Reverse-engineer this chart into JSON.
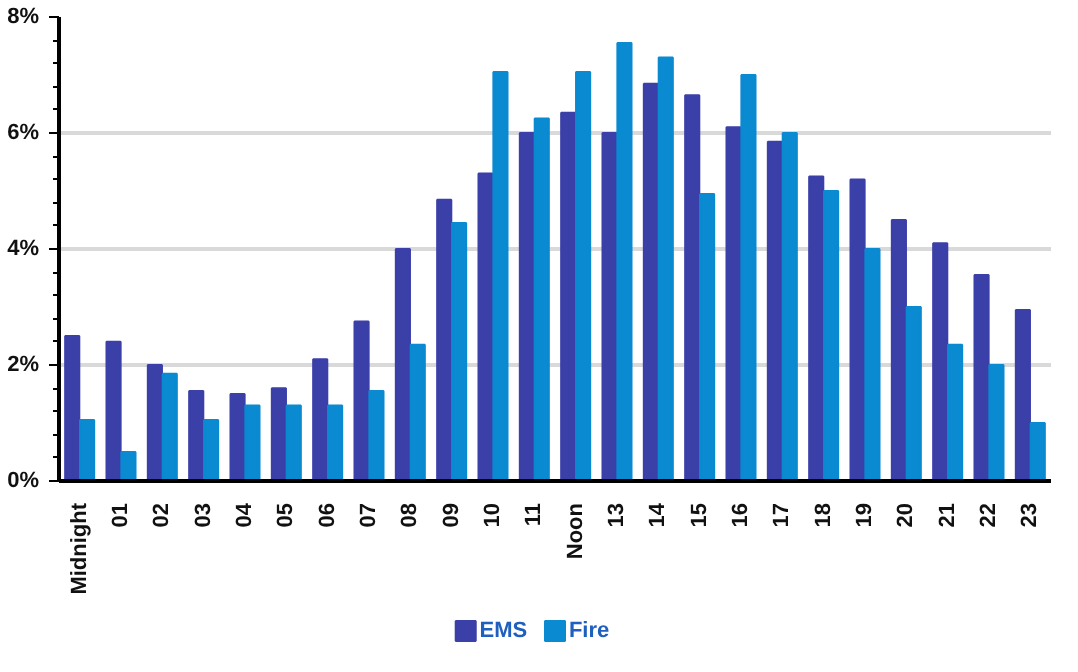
{
  "chart_data": {
    "type": "bar",
    "categories": [
      "Midnight",
      "01",
      "02",
      "03",
      "04",
      "05",
      "06",
      "07",
      "08",
      "09",
      "10",
      "11",
      "Noon",
      "13",
      "14",
      "15",
      "16",
      "17",
      "18",
      "19",
      "20",
      "21",
      "22",
      "23"
    ],
    "series": [
      {
        "name": "EMS",
        "color": "#3b3fa8",
        "values": [
          2.5,
          2.4,
          2.0,
          1.55,
          1.5,
          1.6,
          2.1,
          2.75,
          4.0,
          4.85,
          5.3,
          6.0,
          6.35,
          6.0,
          6.85,
          6.65,
          6.1,
          5.85,
          5.25,
          5.2,
          4.5,
          4.1,
          3.55,
          2.95
        ]
      },
      {
        "name": "Fire",
        "color": "#0a8ad0",
        "values": [
          1.05,
          0.5,
          1.85,
          1.05,
          1.3,
          1.3,
          1.3,
          1.55,
          2.35,
          4.45,
          7.05,
          6.25,
          7.05,
          7.55,
          7.3,
          4.95,
          7.0,
          6.0,
          5.0,
          4.0,
          3.0,
          2.35,
          2.0,
          1.0
        ]
      }
    ],
    "ylim": [
      0,
      8
    ],
    "yticks": [
      {
        "value": 0,
        "label": "0%"
      },
      {
        "value": 2,
        "label": "2%"
      },
      {
        "value": 4,
        "label": "4%"
      },
      {
        "value": 6,
        "label": "6%"
      },
      {
        "value": 8,
        "label": "8%"
      }
    ],
    "grid": "y",
    "legend": "bottom"
  }
}
